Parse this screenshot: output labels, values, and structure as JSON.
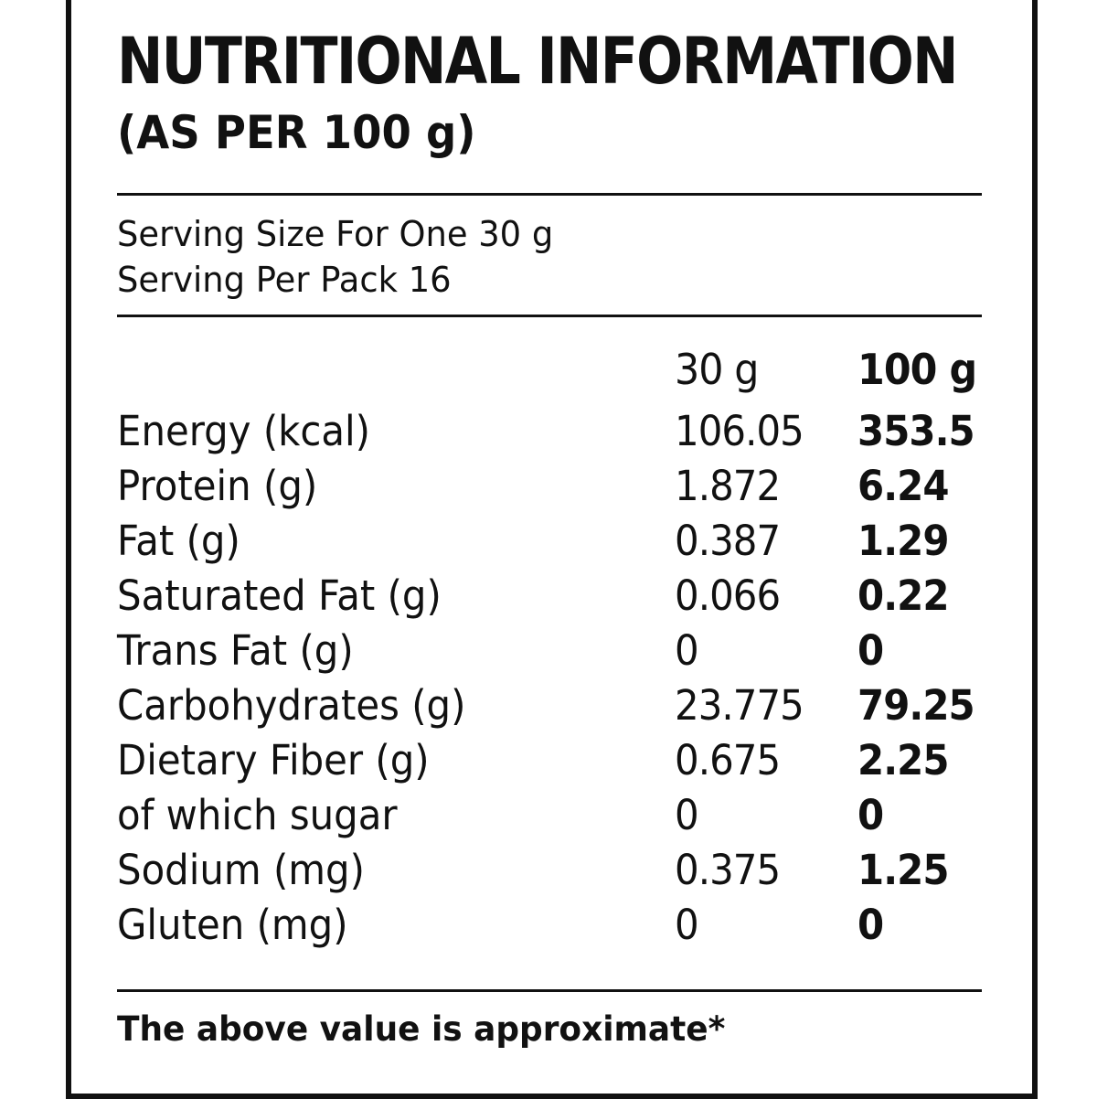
{
  "label": {
    "title": "NUTRITIONAL INFORMATION",
    "subtitle": "(AS PER 100 g)",
    "serving_size": "Serving Size For One 30 g",
    "serving_per_pack": "Serving Per Pack 16",
    "columns": [
      "30 g",
      "100 g"
    ],
    "rows": [
      {
        "nutrient": "Energy (kcal)",
        "per_30g": "106.05",
        "per_100g": "353.5"
      },
      {
        "nutrient": "Protein (g)",
        "per_30g": "1.872",
        "per_100g": "6.24"
      },
      {
        "nutrient": "Fat (g)",
        "per_30g": "0.387",
        "per_100g": "1.29"
      },
      {
        "nutrient": "Saturated Fat (g)",
        "per_30g": "0.066",
        "per_100g": "0.22"
      },
      {
        "nutrient": "Trans Fat (g)",
        "per_30g": "0",
        "per_100g": "0"
      },
      {
        "nutrient": "Carbohydrates (g)",
        "per_30g": "23.775",
        "per_100g": "79.25"
      },
      {
        "nutrient": "Dietary Fiber (g)",
        "per_30g": "0.675",
        "per_100g": "2.25"
      },
      {
        "nutrient": "of which sugar",
        "per_30g": "0",
        "per_100g": "0"
      },
      {
        "nutrient": "Sodium (mg)",
        "per_30g": "0.375",
        "per_100g": "1.25"
      },
      {
        "nutrient": "Gluten (mg)",
        "per_30g": "0",
        "per_100g": "0"
      }
    ],
    "footnote": "The above value is approximate*"
  }
}
